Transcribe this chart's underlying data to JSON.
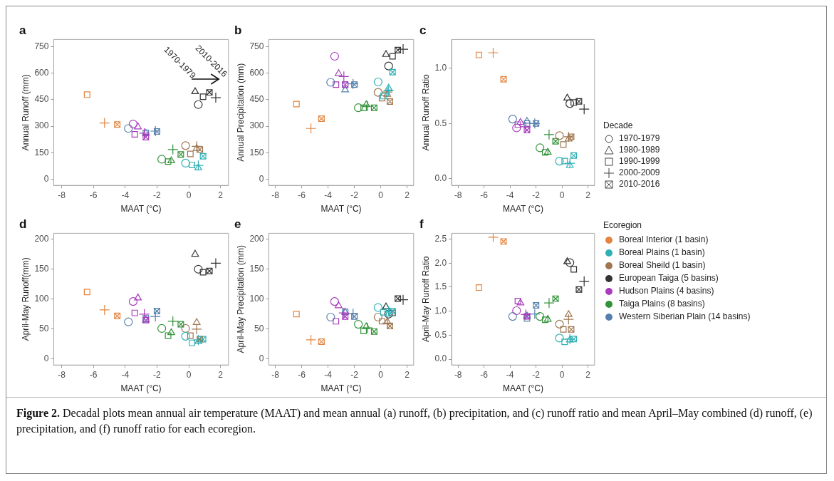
{
  "chart_data": [
    {
      "type": "scatter",
      "title": "a",
      "xlabel": "MAAT (°C)",
      "ylabel": "Annual Runoff (mm)",
      "xlim": [
        -8.5,
        2.5
      ],
      "xticks": [
        -8,
        -6,
        -4,
        -2,
        0,
        2
      ],
      "ylim": [
        -35,
        790
      ],
      "yticks": [
        0,
        150,
        300,
        450,
        600,
        750
      ],
      "annotations": [
        "1970-1979",
        "2010-2016"
      ],
      "marker": [
        "circle",
        "triangle",
        "square",
        "cross",
        "square-x"
      ],
      "series": [
        {
          "color": "#e38540",
          "x": [
            null,
            null,
            -6.4,
            -5.3,
            -4.5
          ],
          "values": [
            null,
            null,
            478,
            318,
            309
          ]
        },
        {
          "color": "#2fb0b5",
          "x": [
            -0.2,
            0.6,
            0.2,
            0.6,
            0.9
          ],
          "values": [
            91,
            64,
            81,
            78,
            130
          ]
        },
        {
          "color": "#9f7650",
          "x": [
            -0.2,
            0.5,
            0.1,
            0.5,
            0.7
          ],
          "values": [
            190,
            174,
            143,
            186,
            168
          ]
        },
        {
          "color": "#333333",
          "x": [
            0.6,
            0.4,
            0.9,
            1.7,
            1.3
          ],
          "values": [
            422,
            495,
            466,
            461,
            491
          ]
        },
        {
          "color": "#a83cbc",
          "x": [
            -3.5,
            -3.2,
            -3.4,
            -2.8,
            -2.7
          ],
          "values": [
            312,
            296,
            254,
            260,
            238
          ]
        },
        {
          "color": "#33923a",
          "x": [
            -1.7,
            -1.1,
            -1.3,
            -1.0,
            -0.5
          ],
          "values": [
            113,
            104,
            100,
            168,
            140
          ]
        },
        {
          "color": "#5580ad",
          "x": [
            -3.8,
            -2.7,
            -2.7,
            -2.1,
            -2.0
          ],
          "values": [
            287,
            260,
            262,
            272,
            270
          ]
        }
      ]
    },
    {
      "type": "scatter",
      "title": "b",
      "xlabel": "MAAT (°C)",
      "ylabel": "Annual Precipitation (mm)",
      "xlim": [
        -8.5,
        2.5
      ],
      "xticks": [
        -8,
        -6,
        -4,
        -2,
        0,
        2
      ],
      "ylim": [
        -35,
        790
      ],
      "yticks": [
        0,
        150,
        300,
        450,
        600,
        750
      ],
      "marker": [
        "circle",
        "triangle",
        "square",
        "cross",
        "square-x"
      ],
      "series": [
        {
          "color": "#e38540",
          "x": [
            null,
            null,
            -6.4,
            -5.3,
            -4.5
          ],
          "values": [
            null,
            null,
            425,
            287,
            342
          ]
        },
        {
          "color": "#2fb0b5",
          "x": [
            -0.2,
            0.6,
            0.2,
            0.6,
            0.9
          ],
          "values": [
            550,
            515,
            470,
            500,
            605
          ]
        },
        {
          "color": "#9f7650",
          "x": [
            -0.2,
            0.5,
            0.1,
            0.5,
            0.7
          ],
          "values": [
            491,
            480,
            458,
            493,
            439
          ]
        },
        {
          "color": "#333333",
          "x": [
            0.6,
            0.4,
            0.9,
            1.7,
            1.3
          ],
          "values": [
            640,
            705,
            695,
            735,
            730
          ]
        },
        {
          "color": "#a83cbc",
          "x": [
            -3.5,
            -3.2,
            -3.4,
            -2.8,
            -2.7
          ],
          "values": [
            695,
            597,
            535,
            581,
            535
          ]
        },
        {
          "color": "#33923a",
          "x": [
            -1.7,
            -1.1,
            -1.3,
            -1.0,
            -0.5
          ],
          "values": [
            404,
            421,
            404,
            413,
            404
          ]
        },
        {
          "color": "#5580ad",
          "x": [
            -3.8,
            -2.7,
            -2.7,
            -2.1,
            -2.0
          ],
          "values": [
            548,
            505,
            535,
            539,
            535
          ]
        }
      ]
    },
    {
      "type": "scatter",
      "title": "c",
      "xlabel": "MAAT (°C)",
      "ylabel": "Annual Runoff Ratio",
      "xlim": [
        -8.5,
        2.5
      ],
      "xticks": [
        -8,
        -6,
        -4,
        -2,
        0,
        2
      ],
      "ylim": [
        -0.06,
        1.26
      ],
      "yticks": [
        {
          "value": 0,
          "label": "0.0"
        },
        {
          "value": 0.5,
          "label": "0.5"
        },
        {
          "value": 1,
          "label": "1.0"
        }
      ],
      "marker": [
        "circle",
        "triangle",
        "square",
        "cross",
        "square-x"
      ],
      "legend": "right",
      "legend_title": "Ecoregion",
      "series": [
        {
          "name": "Boreal Interior (1 basin)",
          "color": "#e38540",
          "x": [
            null,
            null,
            -6.4,
            -5.3,
            -4.5
          ],
          "values": [
            null,
            null,
            1.12,
            1.14,
            0.9
          ]
        },
        {
          "name": "Boreal Plains (1 basin)",
          "color": "#2fb0b5",
          "x": [
            -0.2,
            0.6,
            0.2,
            0.6,
            0.9
          ],
          "values": [
            0.16,
            0.12,
            0.16,
            0.14,
            0.21
          ]
        },
        {
          "name": "Boreal Sheild (1 basin)",
          "color": "#9f7650",
          "x": [
            -0.2,
            0.5,
            0.1,
            0.5,
            0.7
          ],
          "values": [
            0.39,
            0.36,
            0.31,
            0.38,
            0.38
          ]
        },
        {
          "name": "European Taiga (5 basins)",
          "color": "#333333",
          "x": [
            0.6,
            0.4,
            0.9,
            1.7,
            1.3
          ],
          "values": [
            0.68,
            0.73,
            0.69,
            0.63,
            0.7
          ]
        },
        {
          "name": "Hudson Plains (4 basins)",
          "color": "#a83cbc",
          "x": [
            -3.5,
            -3.2,
            -3.4,
            -2.8,
            -2.7
          ],
          "values": [
            0.46,
            0.51,
            0.49,
            0.47,
            0.44
          ]
        },
        {
          "name": "Taiga Plains (8 basins)",
          "color": "#33923a",
          "x": [
            -1.7,
            -1.1,
            -1.3,
            -1.0,
            -0.5
          ],
          "values": [
            0.28,
            0.24,
            0.24,
            0.4,
            0.34
          ]
        },
        {
          "name": "Western Siberian Plain (14 basins)",
          "color": "#5580ad",
          "x": [
            -3.8,
            -2.7,
            -2.7,
            -2.1,
            -2.0
          ],
          "values": [
            0.54,
            0.52,
            0.5,
            0.5,
            0.5
          ]
        }
      ]
    },
    {
      "type": "scatter",
      "title": "d",
      "xlabel": "MAAT (°C)",
      "ylabel": "April-May Runoff(mm)",
      "xlim": [
        -8.5,
        2.5
      ],
      "xticks": [
        -8,
        -6,
        -4,
        -2,
        0,
        2
      ],
      "ylim": [
        -10,
        210
      ],
      "yticks": [
        0,
        50,
        100,
        150,
        200
      ],
      "marker": [
        "circle",
        "triangle",
        "square",
        "cross",
        "square-x"
      ],
      "series": [
        {
          "color": "#e38540",
          "x": [
            null,
            null,
            -6.4,
            -5.3,
            -4.5
          ],
          "values": [
            null,
            null,
            112,
            82,
            72
          ]
        },
        {
          "color": "#2fb0b5",
          "x": [
            -0.2,
            0.6,
            0.2,
            0.6,
            0.9
          ],
          "values": [
            38,
            29,
            27,
            32,
            33
          ]
        },
        {
          "color": "#9f7650",
          "x": [
            -0.2,
            0.5,
            0.1,
            0.5,
            0.7
          ],
          "values": [
            51,
            61,
            39,
            50,
            33
          ]
        },
        {
          "color": "#333333",
          "x": [
            0.6,
            0.4,
            0.9,
            1.7,
            1.3
          ],
          "values": [
            150,
            175,
            145,
            160,
            147
          ]
        },
        {
          "color": "#a83cbc",
          "x": [
            -3.5,
            -3.2,
            -3.4,
            -2.8,
            -2.7
          ],
          "values": [
            96,
            102,
            77,
            75,
            65
          ]
        },
        {
          "color": "#33923a",
          "x": [
            -1.7,
            -1.1,
            -1.3,
            -1.0,
            -0.5
          ],
          "values": [
            51,
            44,
            39,
            63,
            58
          ]
        },
        {
          "color": "#5580ad",
          "x": [
            -3.8,
            -2.7,
            -2.7,
            -2.1,
            -2.0
          ],
          "values": [
            62,
            65,
            68,
            71,
            80
          ]
        }
      ]
    },
    {
      "type": "scatter",
      "title": "e",
      "xlabel": "MAAT (°C)",
      "ylabel": "April-May Precipitation (mm)",
      "xlim": [
        -8.5,
        2.5
      ],
      "xticks": [
        -8,
        -6,
        -4,
        -2,
        0,
        2
      ],
      "ylim": [
        -10,
        210
      ],
      "yticks": [
        0,
        50,
        100,
        150,
        200
      ],
      "marker": [
        "circle",
        "triangle",
        "square",
        "cross",
        "square-x"
      ],
      "series": [
        {
          "color": "#e38540",
          "x": [
            null,
            null,
            -6.4,
            -5.3,
            -4.5
          ],
          "values": [
            null,
            null,
            75,
            32,
            29
          ]
        },
        {
          "color": "#2fb0b5",
          "x": [
            -0.2,
            0.6,
            0.2,
            0.6,
            0.9
          ],
          "values": [
            86,
            75,
            78,
            80,
            80
          ]
        },
        {
          "color": "#9f7650",
          "x": [
            -0.2,
            0.5,
            0.1,
            0.5,
            0.7
          ],
          "values": [
            70,
            62,
            63,
            60,
            55
          ]
        },
        {
          "color": "#333333",
          "x": [
            0.6,
            0.4,
            0.9,
            1.7,
            1.3
          ],
          "values": [
            75,
            87,
            77,
            99,
            101
          ]
        },
        {
          "color": "#a83cbc",
          "x": [
            -3.5,
            -3.2,
            -3.4,
            -2.8,
            -2.7
          ],
          "values": [
            96,
            89,
            63,
            77,
            71
          ]
        },
        {
          "color": "#33923a",
          "x": [
            -1.7,
            -1.1,
            -1.3,
            -1.0,
            -0.5
          ],
          "values": [
            58,
            54,
            47,
            52,
            46
          ]
        },
        {
          "color": "#5580ad",
          "x": [
            -3.8,
            -2.7,
            -2.7,
            -2.1,
            -2.0
          ],
          "values": [
            70,
            78,
            79,
            76,
            71
          ]
        }
      ]
    },
    {
      "type": "scatter",
      "title": "f",
      "xlabel": "MAAT (°C)",
      "ylabel": "April-May Runoff Ratio",
      "xlim": [
        -8.5,
        2.5
      ],
      "xticks": [
        -8,
        -6,
        -4,
        -2,
        0,
        2
      ],
      "ylim": [
        -0.12,
        2.62
      ],
      "yticks": [
        {
          "value": 0,
          "label": "0.0"
        },
        {
          "value": 0.5,
          "label": "0.5"
        },
        {
          "value": 1,
          "label": "1.0"
        },
        {
          "value": 1.5,
          "label": "1.5"
        },
        {
          "value": 2,
          "label": "2.0"
        },
        {
          "value": 2.5,
          "label": "2.5"
        }
      ],
      "marker": [
        "circle",
        "triangle",
        "square",
        "cross",
        "square-x"
      ],
      "series": [
        {
          "color": "#e38540",
          "x": [
            null,
            null,
            -6.4,
            -5.3,
            -4.5
          ],
          "values": [
            null,
            null,
            1.49,
            2.54,
            2.45
          ]
        },
        {
          "color": "#2fb0b5",
          "x": [
            -0.2,
            0.6,
            0.2,
            0.6,
            0.9
          ],
          "values": [
            0.44,
            0.4,
            0.36,
            0.42,
            0.42
          ]
        },
        {
          "color": "#9f7650",
          "x": [
            -0.2,
            0.5,
            0.1,
            0.5,
            0.7
          ],
          "values": [
            0.73,
            0.93,
            0.62,
            0.83,
            0.62
          ]
        },
        {
          "color": "#333333",
          "x": [
            0.6,
            0.4,
            0.9,
            1.7,
            1.3
          ],
          "values": [
            2.01,
            2.03,
            1.87,
            1.62,
            1.45
          ]
        },
        {
          "color": "#a83cbc",
          "x": [
            -3.5,
            -3.2,
            -3.4,
            -2.8,
            -2.7
          ],
          "values": [
            1.01,
            1.17,
            1.21,
            0.93,
            0.89
          ]
        },
        {
          "color": "#33923a",
          "x": [
            -1.7,
            -1.1,
            -1.3,
            -1.0,
            -0.5
          ],
          "values": [
            0.89,
            0.83,
            0.82,
            1.17,
            1.26
          ]
        },
        {
          "color": "#5580ad",
          "x": [
            -3.8,
            -2.7,
            -2.7,
            -2.1,
            -2.0
          ],
          "values": [
            0.89,
            0.9,
            0.85,
            0.94,
            1.12
          ]
        }
      ]
    },
    {
      "type": "other",
      "legend_title": "Decade",
      "categories": [
        "1970-1979",
        "1980-1989",
        "1990-1999",
        "2000-2009",
        "2010-2016"
      ],
      "annotations": [
        "Figure 2. Decadal plots mean annual air temperature (MAAT) and mean annual (a) runoff, (b) precipitation, and (c) runoff ratio and mean April–May combined (d) runoff, (e) precipitation, and (f) runoff ratio for each ecoregion."
      ]
    }
  ]
}
